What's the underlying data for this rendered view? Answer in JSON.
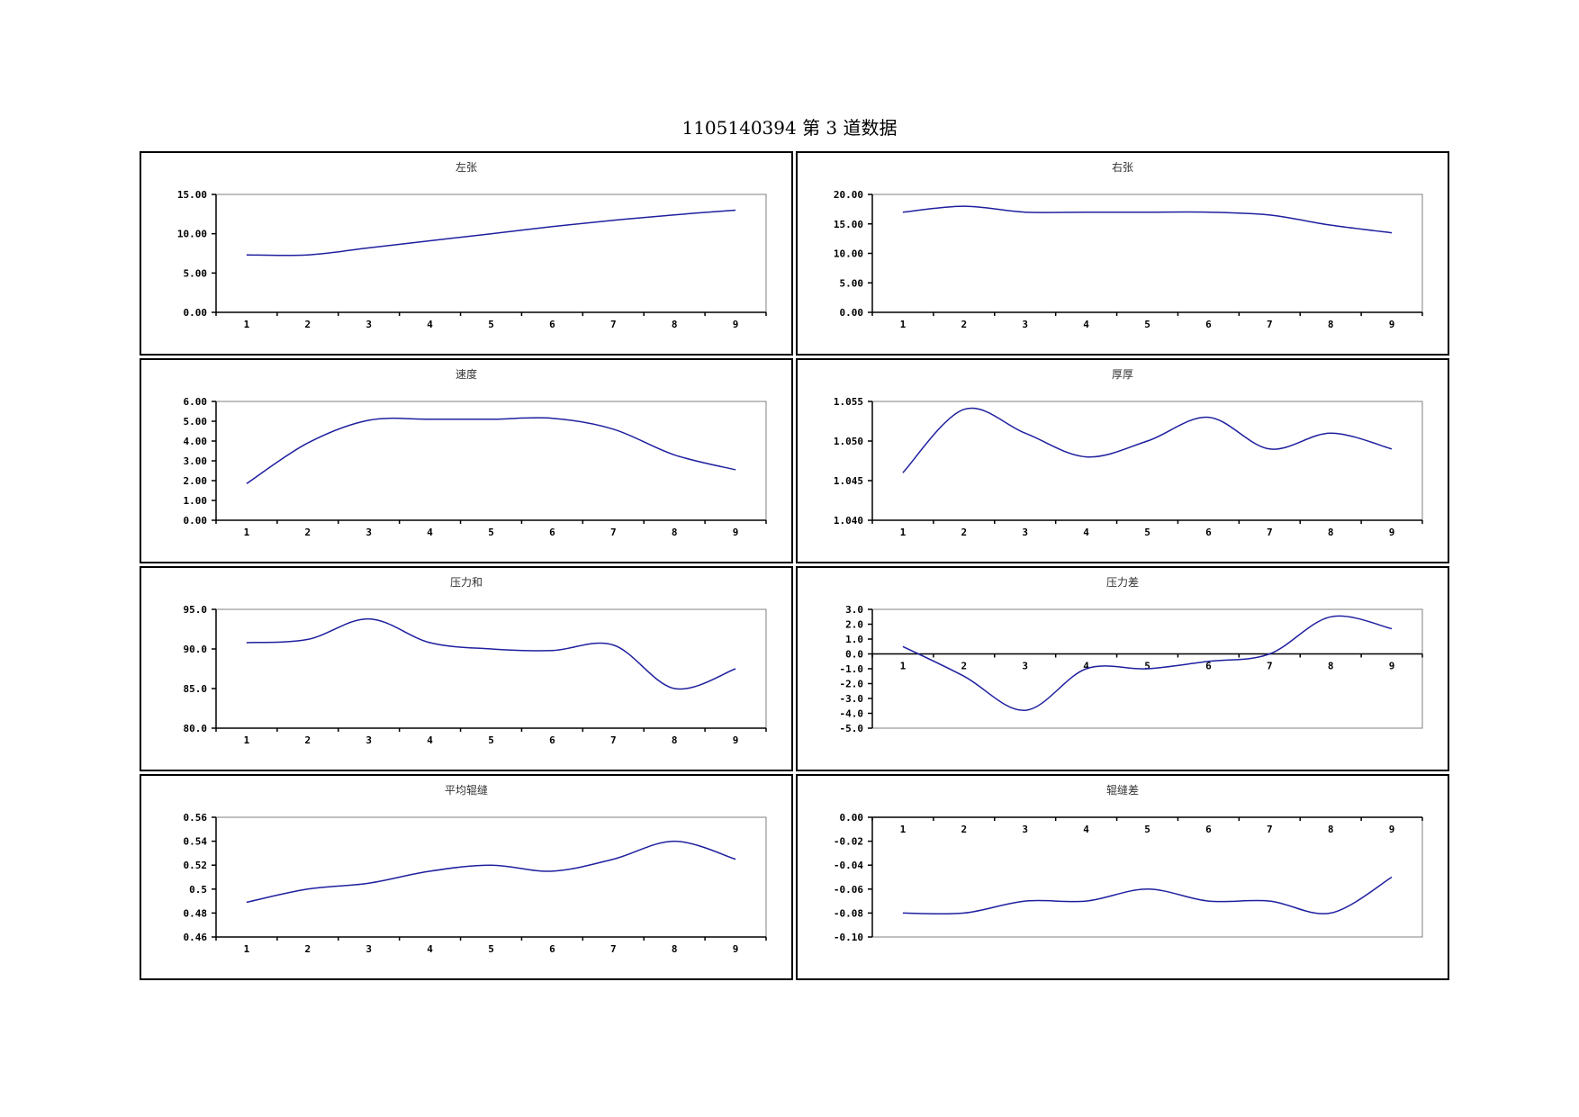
{
  "page": {
    "title": "1105140394 第 3 道数据"
  },
  "colors": {
    "line": "#1f1f9f",
    "axis": "#000000",
    "plot_border": "#808080"
  },
  "chart_data": [
    {
      "type": "line",
      "title": "左张",
      "categories": [
        "1",
        "2",
        "3",
        "4",
        "5",
        "6",
        "7",
        "8",
        "9"
      ],
      "series": [
        {
          "values": [
            7.3,
            7.3,
            8.2,
            9.1,
            10.0,
            10.9,
            11.7,
            12.4,
            13.0
          ]
        }
      ],
      "ylim": [
        0,
        15
      ],
      "yticks": [
        0,
        5,
        10,
        15
      ],
      "ytick_labels": [
        "0.00",
        "5.00",
        "10.00",
        "15.00"
      ],
      "grid": false
    },
    {
      "type": "line",
      "title": "右张",
      "categories": [
        "1",
        "2",
        "3",
        "4",
        "5",
        "6",
        "7",
        "8",
        "9"
      ],
      "series": [
        {
          "values": [
            17.0,
            18.0,
            17.0,
            17.0,
            17.0,
            17.0,
            16.5,
            14.8,
            13.5
          ]
        }
      ],
      "ylim": [
        0,
        20
      ],
      "yticks": [
        0,
        5,
        10,
        15,
        20
      ],
      "ytick_labels": [
        "0.00",
        "5.00",
        "10.00",
        "15.00",
        "20.00"
      ],
      "grid": false
    },
    {
      "type": "line",
      "title": "速度",
      "categories": [
        "1",
        "2",
        "3",
        "4",
        "5",
        "6",
        "7",
        "8",
        "9"
      ],
      "series": [
        {
          "values": [
            1.85,
            3.9,
            5.05,
            5.1,
            5.1,
            5.15,
            4.6,
            3.3,
            2.55
          ]
        }
      ],
      "ylim": [
        0,
        6
      ],
      "yticks": [
        0,
        1,
        2,
        3,
        4,
        5,
        6
      ],
      "ytick_labels": [
        "0.00",
        "1.00",
        "2.00",
        "3.00",
        "4.00",
        "5.00",
        "6.00"
      ],
      "grid": false
    },
    {
      "type": "line",
      "title": "厚厚",
      "categories": [
        "1",
        "2",
        "3",
        "4",
        "5",
        "6",
        "7",
        "8",
        "9"
      ],
      "series": [
        {
          "values": [
            1.046,
            1.054,
            1.051,
            1.048,
            1.05,
            1.053,
            1.049,
            1.051,
            1.049
          ]
        }
      ],
      "ylim": [
        1.04,
        1.055
      ],
      "yticks": [
        1.04,
        1.045,
        1.05,
        1.055
      ],
      "ytick_labels": [
        "1.040",
        "1.045",
        "1.050",
        "1.055"
      ],
      "grid": false
    },
    {
      "type": "line",
      "title": "压力和",
      "categories": [
        "1",
        "2",
        "3",
        "4",
        "5",
        "6",
        "7",
        "8",
        "9"
      ],
      "series": [
        {
          "values": [
            90.8,
            91.2,
            93.8,
            90.8,
            90.0,
            89.8,
            90.5,
            85.0,
            87.5
          ]
        }
      ],
      "ylim": [
        80,
        95
      ],
      "yticks": [
        80,
        85,
        90,
        95
      ],
      "ytick_labels": [
        "80.0",
        "85.0",
        "90.0",
        "95.0"
      ],
      "grid": false
    },
    {
      "type": "line",
      "title": "压力差",
      "categories": [
        "1",
        "2",
        "3",
        "4",
        "5",
        "6",
        "7",
        "8",
        "9"
      ],
      "series": [
        {
          "values": [
            0.5,
            -1.5,
            -3.8,
            -1.0,
            -1.0,
            -0.5,
            0.0,
            2.5,
            1.7
          ]
        }
      ],
      "ylim": [
        -5,
        3
      ],
      "yticks": [
        -5,
        -4,
        -3,
        -2,
        -1,
        0,
        1,
        2,
        3
      ],
      "ytick_labels": [
        "-5.0",
        "-4.0",
        "-3.0",
        "-2.0",
        "-1.0",
        "0.0",
        "1.0",
        "2.0",
        "3.0"
      ],
      "category_axis_at": 0,
      "grid": false
    },
    {
      "type": "line",
      "title": "平均辊缝",
      "categories": [
        "1",
        "2",
        "3",
        "4",
        "5",
        "6",
        "7",
        "8",
        "9"
      ],
      "series": [
        {
          "values": [
            0.489,
            0.5,
            0.505,
            0.515,
            0.52,
            0.515,
            0.525,
            0.54,
            0.525
          ]
        }
      ],
      "ylim": [
        0.46,
        0.56
      ],
      "yticks": [
        0.46,
        0.48,
        0.5,
        0.52,
        0.54,
        0.56
      ],
      "ytick_labels": [
        "0.46",
        "0.48",
        "0.5",
        "0.52",
        "0.54",
        "0.56"
      ],
      "grid": false
    },
    {
      "type": "line",
      "title": "辊缝差",
      "categories": [
        "1",
        "2",
        "3",
        "4",
        "5",
        "6",
        "7",
        "8",
        "9"
      ],
      "series": [
        {
          "values": [
            -0.08,
            -0.08,
            -0.07,
            -0.07,
            -0.06,
            -0.07,
            -0.07,
            -0.08,
            -0.05
          ]
        }
      ],
      "ylim": [
        -0.1,
        0
      ],
      "yticks": [
        -0.1,
        -0.08,
        -0.06,
        -0.04,
        -0.02,
        0
      ],
      "ytick_labels": [
        "-0.10",
        "-0.08",
        "-0.06",
        "-0.04",
        "-0.02",
        "0.00"
      ],
      "category_axis_at": 0,
      "grid": false
    }
  ]
}
